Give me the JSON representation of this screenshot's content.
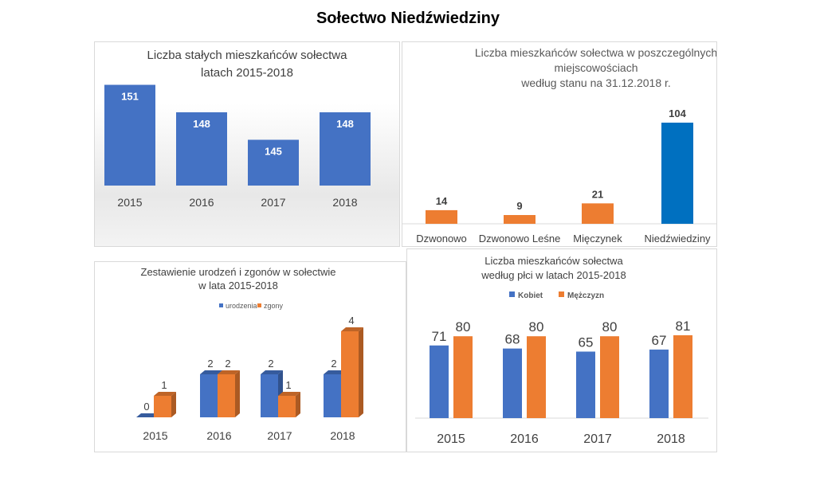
{
  "page": {
    "title": "Sołectwo Niedźwiedziny"
  },
  "colors": {
    "blue": "#4472C4",
    "blue_dark": "#0070C0",
    "orange": "#ED7D31",
    "grid_text": "#404040"
  },
  "chart_data": [
    {
      "type": "bar",
      "title": [
        "Liczba stałych mieszkańców sołectwa",
        "latach 2015-2018"
      ],
      "categories": [
        "2015",
        "2016",
        "2017",
        "2018"
      ],
      "values": [
        151,
        148,
        145,
        148
      ],
      "ylim": [
        140,
        152
      ],
      "grid": false,
      "legend": "none"
    },
    {
      "type": "bar",
      "title": [
        "Liczba mieszkańców sołectwa w poszczególnych",
        "miejscowościach",
        "według stanu na 31.12.2018 r."
      ],
      "categories": [
        "Dzwonowo",
        "Dzwonowo Leśne",
        "Mięczynek",
        "Niedźwiedziny"
      ],
      "values": [
        14,
        9,
        21,
        104
      ],
      "ylim": [
        0,
        110
      ],
      "grid": false,
      "legend": "none"
    },
    {
      "type": "bar",
      "title": [
        "Zestawienie urodzeń i zgonów w sołectwie",
        "w lata 2015-2018"
      ],
      "categories": [
        "2015",
        "2016",
        "2017",
        "2018"
      ],
      "series": [
        {
          "name": "urodzenia",
          "values": [
            0,
            2,
            2,
            2
          ]
        },
        {
          "name": "zgony",
          "values": [
            1,
            2,
            1,
            4
          ]
        }
      ],
      "ylim": [
        0,
        4.5
      ],
      "grid": false,
      "legend": "top"
    },
    {
      "type": "bar",
      "title": [
        "Liczba mieszkańców sołectwa",
        "według płci w latach 2015-2018"
      ],
      "categories": [
        "2015",
        "2016",
        "2017",
        "2018"
      ],
      "series": [
        {
          "name": "Kobiet",
          "values": [
            71,
            68,
            65,
            67
          ]
        },
        {
          "name": "Mężczyzn",
          "values": [
            80,
            80,
            80,
            81
          ]
        }
      ],
      "ylim": [
        0,
        90
      ],
      "grid": false,
      "legend": "top"
    }
  ]
}
